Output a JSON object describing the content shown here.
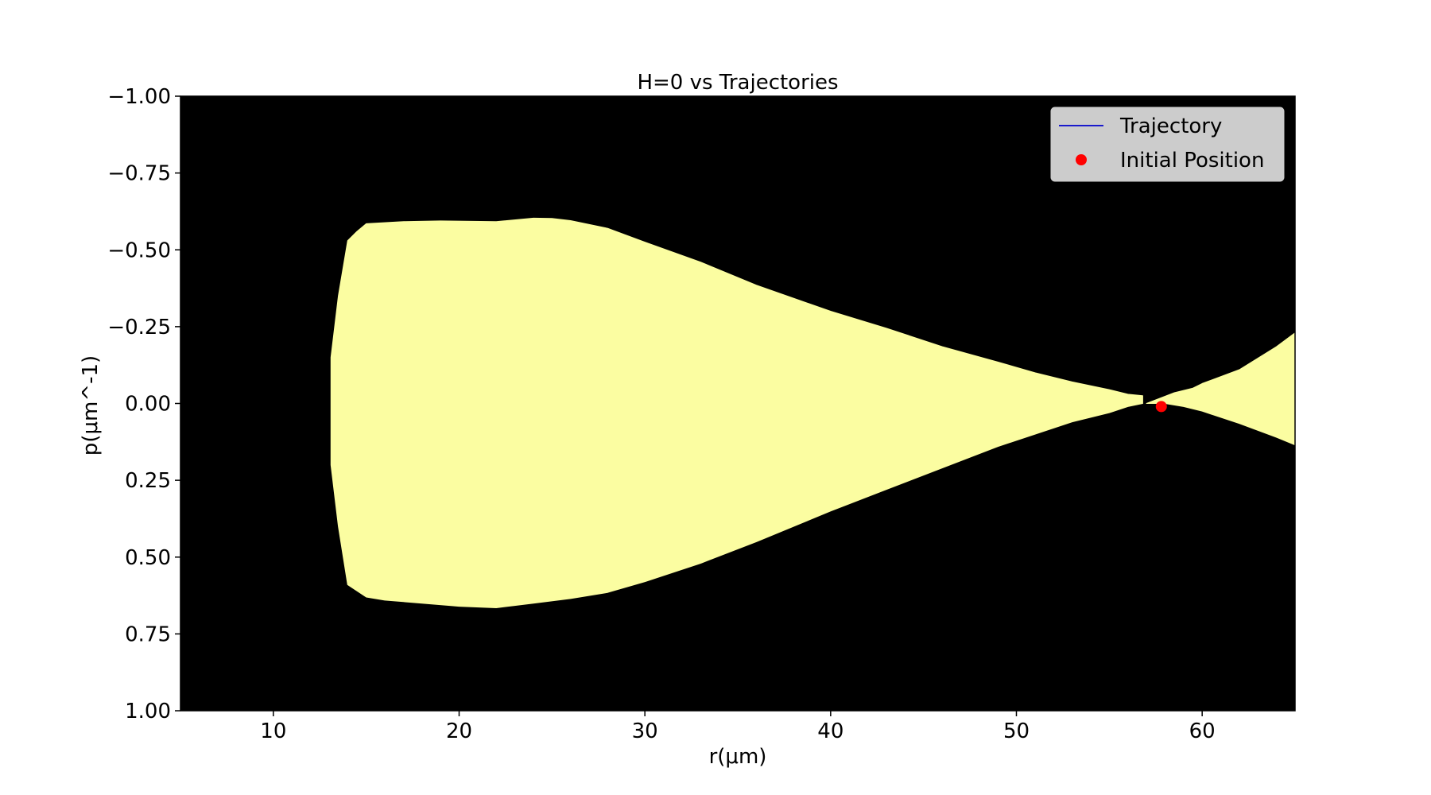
{
  "chart_data": {
    "type": "area",
    "title": "H=0 vs Trajectories",
    "xlabel": "r(μm)",
    "ylabel": "p(μm^-1)",
    "xlim": [
      5,
      65
    ],
    "ylim": [
      -1.0,
      1.0
    ],
    "y_inverted": true,
    "x_ticks": [
      10,
      20,
      30,
      40,
      50,
      60
    ],
    "x_tick_labels": [
      "10",
      "20",
      "30",
      "40",
      "50",
      "60"
    ],
    "y_ticks": [
      -1.0,
      -0.75,
      -0.5,
      -0.25,
      0.0,
      0.25,
      0.5,
      0.75,
      1.0
    ],
    "y_tick_labels": [
      "−1.00",
      "−0.75",
      "−0.50",
      "−0.25",
      "0.00",
      "0.25",
      "0.50",
      "0.75",
      "1.00"
    ],
    "grid": false,
    "background_color": "#000000",
    "region_color": "#fbfda1",
    "legend_position": "top-right",
    "regions": [
      {
        "upper": [
          [
            13.1,
            -0.15
          ],
          [
            13.5,
            -0.35
          ],
          [
            14,
            -0.53
          ],
          [
            14.5,
            -0.56
          ],
          [
            15,
            -0.585
          ],
          [
            17,
            -0.592
          ],
          [
            19,
            -0.594
          ],
          [
            22,
            -0.592
          ],
          [
            24,
            -0.603
          ],
          [
            25,
            -0.602
          ],
          [
            26,
            -0.595
          ],
          [
            28,
            -0.57
          ],
          [
            30,
            -0.525
          ],
          [
            33,
            -0.46
          ],
          [
            36,
            -0.385
          ],
          [
            40,
            -0.3
          ],
          [
            43,
            -0.245
          ],
          [
            46,
            -0.185
          ],
          [
            49,
            -0.135
          ],
          [
            51,
            -0.1
          ],
          [
            53,
            -0.07
          ],
          [
            55,
            -0.045
          ],
          [
            56,
            -0.03
          ],
          [
            56.8,
            -0.025
          ]
        ],
        "lower": [
          [
            13.1,
            0.2
          ],
          [
            13.5,
            0.4
          ],
          [
            14,
            0.59
          ],
          [
            15,
            0.63
          ],
          [
            16,
            0.64
          ],
          [
            18,
            0.65
          ],
          [
            20,
            0.66
          ],
          [
            22,
            0.665
          ],
          [
            24,
            0.65
          ],
          [
            26,
            0.635
          ],
          [
            28,
            0.615
          ],
          [
            30,
            0.58
          ],
          [
            33,
            0.52
          ],
          [
            36,
            0.45
          ],
          [
            40,
            0.35
          ],
          [
            43,
            0.28
          ],
          [
            46,
            0.21
          ],
          [
            49,
            0.14
          ],
          [
            51,
            0.1
          ],
          [
            53,
            0.06
          ],
          [
            54,
            0.045
          ],
          [
            55,
            0.03
          ],
          [
            56,
            0.01
          ],
          [
            56.8,
            0.0
          ]
        ]
      },
      {
        "upper": [
          [
            57.0,
            0.0
          ],
          [
            58.5,
            -0.035
          ],
          [
            59.5,
            -0.05
          ],
          [
            60,
            -0.065
          ],
          [
            62,
            -0.11
          ],
          [
            64,
            -0.185
          ],
          [
            65,
            -0.23
          ]
        ],
        "lower": [
          [
            57.0,
            0.0
          ],
          [
            58,
            0.0
          ],
          [
            59,
            0.01
          ],
          [
            60,
            0.025
          ],
          [
            62,
            0.065
          ],
          [
            64,
            0.11
          ],
          [
            65,
            0.135
          ]
        ]
      }
    ],
    "series": [
      {
        "name": "Trajectory",
        "type": "line",
        "color": "#0000cc",
        "x": [],
        "y": []
      },
      {
        "name": "Initial Position",
        "type": "scatter",
        "color": "#ff0000",
        "x": [
          57.8
        ],
        "y": [
          0.01
        ]
      }
    ],
    "legend": [
      {
        "label": "Trajectory",
        "marker": "line",
        "color": "#0000cc"
      },
      {
        "label": "Initial Position",
        "marker": "dot",
        "color": "#ff0000"
      }
    ]
  }
}
